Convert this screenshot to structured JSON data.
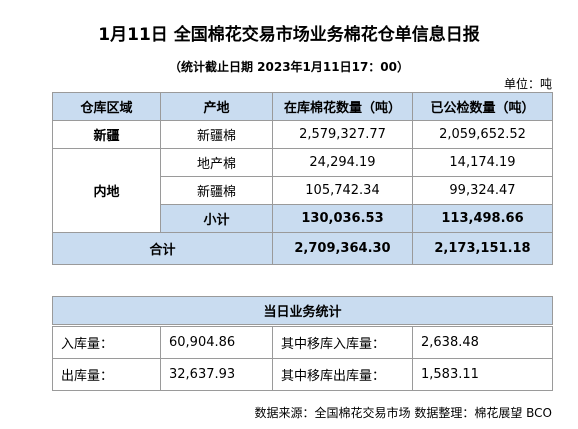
{
  "header": {
    "title": "1月11日 全国棉花交易市场业务棉花仓单信息日报",
    "subtitle": "（统计截止日期 2023年1月11日17：00）",
    "unit": "单位：吨"
  },
  "table": {
    "headers": [
      "仓库区域",
      "产地",
      "在库棉花数量（吨）",
      "已公检数量（吨）"
    ],
    "groups": [
      {
        "region": "新疆",
        "rows": [
          [
            "新疆棉",
            "2,579,327.77",
            "2,059,652.52"
          ]
        ]
      },
      {
        "region": "内地",
        "rows": [
          [
            "地产棉",
            "24,294.19",
            "14,174.19"
          ],
          [
            "新疆棉",
            "105,742.34",
            "99,324.47"
          ],
          [
            "小计",
            "130,036.53",
            "113,498.66"
          ]
        ]
      }
    ],
    "total": {
      "label": "合计",
      "values": [
        "2,709,364.30",
        "2,173,151.18"
      ]
    }
  },
  "stats": {
    "title": "当日业务统计",
    "rows": [
      [
        "入库量：",
        "60,904.86",
        "其中移库入库量：",
        "2,638.48"
      ],
      [
        "出库量：",
        "32,637.93",
        "其中移库出库量：",
        "1,583.11"
      ]
    ]
  },
  "footer": {
    "source": "数据来源：全国棉花交易市场 数据整理：棉花展望 BCO"
  }
}
